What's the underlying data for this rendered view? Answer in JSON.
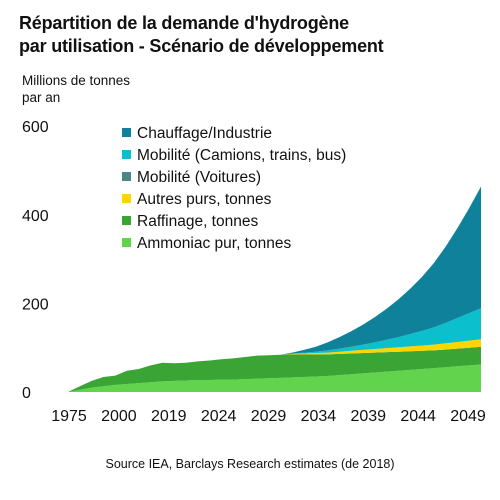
{
  "chart_data": {
    "type": "area",
    "stacked": true,
    "title_line1": "Répartition de la demande d'hydrogène",
    "title_line2": "par utilisation - Scénario de développement",
    "ylabel_line1": "Millions de tonnes",
    "ylabel_line2": "par an",
    "source": "Source IEA, Barclays Research estimates (de 2018)",
    "x_ticks": [
      "1975",
      "2000",
      "2019",
      "2024",
      "2029",
      "2034",
      "2039",
      "2044",
      "2049"
    ],
    "y_ticks": [
      "0",
      "200",
      "400",
      "600"
    ],
    "ylim": [
      0,
      600
    ],
    "legend_position": "top-left (inside plot)",
    "grid": false,
    "series": [
      {
        "name": "Ammoniac pur, tonnes",
        "color": "#62d34c",
        "values": [
          0,
          5,
          10,
          13,
          16,
          18,
          20,
          22,
          24,
          25,
          26,
          27,
          27,
          28,
          28,
          29,
          30,
          31,
          32,
          33,
          34,
          35,
          36,
          38,
          40,
          42,
          44,
          46,
          48,
          50,
          52,
          54,
          56,
          58,
          60,
          62
        ]
      },
      {
        "name": "Raffinage, tonnes",
        "color": "#3aa535",
        "values": [
          0,
          8,
          15,
          21,
          21,
          30,
          32,
          38,
          42,
          40,
          40,
          42,
          44,
          46,
          48,
          50,
          52,
          52,
          52,
          52,
          51,
          50,
          49,
          48,
          47,
          46,
          45,
          44,
          43,
          42,
          41,
          40,
          40,
          40,
          40,
          40
        ]
      },
      {
        "name": "Autres purs, tonnes",
        "color": "#ffd500",
        "values": [
          0,
          0,
          0,
          0,
          0,
          0,
          0,
          0,
          0,
          0,
          0,
          0,
          0,
          0,
          0,
          0,
          0,
          0,
          0,
          1,
          2,
          3,
          4,
          5,
          6,
          7,
          8,
          9,
          10,
          11,
          12,
          13,
          14,
          15,
          16,
          17
        ]
      },
      {
        "name": "Mobilité (Voitures)",
        "color": "#4d8785",
        "values": [
          0,
          0,
          0,
          0,
          0,
          0,
          0,
          0,
          0,
          0,
          0,
          0,
          0,
          0,
          0,
          0,
          0,
          0,
          0,
          0,
          0,
          0,
          0,
          0,
          0,
          0,
          0,
          0,
          0,
          0,
          0,
          0,
          0,
          0,
          0,
          0
        ]
      },
      {
        "name": "Mobilité (Camions, trains, bus)",
        "color": "#0bbfcc",
        "values": [
          0,
          0,
          0,
          0,
          0,
          0,
          0,
          0,
          0,
          0,
          0,
          0,
          0,
          0,
          0,
          0,
          0,
          0,
          0,
          1,
          2,
          3,
          5,
          7,
          9,
          12,
          15,
          19,
          23,
          28,
          33,
          39,
          46,
          54,
          62,
          70
        ]
      },
      {
        "name": "Chauffage/Industrie",
        "color": "#0f819b",
        "values": [
          0,
          0,
          0,
          0,
          0,
          0,
          0,
          0,
          0,
          0,
          0,
          0,
          0,
          0,
          0,
          0,
          0,
          0,
          0,
          2,
          6,
          11,
          18,
          26,
          35,
          45,
          57,
          70,
          85,
          102,
          122,
          145,
          172,
          203,
          237,
          275
        ]
      }
    ]
  }
}
